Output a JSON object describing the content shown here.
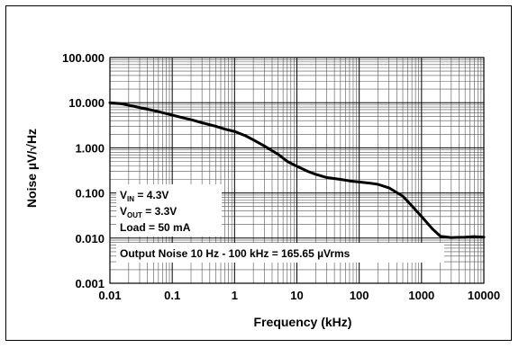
{
  "chart_data": {
    "type": "line",
    "x_scale": "log",
    "y_scale": "log",
    "xlabel": "Frequency (kHz)",
    "ylabel": "Noise µV/√Hz",
    "xlim": [
      0.01,
      10000
    ],
    "ylim": [
      0.001,
      100
    ],
    "grid": true,
    "x_ticks": [
      "0.01",
      "0.1",
      "1",
      "10",
      "100",
      "1000",
      "10000"
    ],
    "y_ticks": [
      "0.001",
      "0.010",
      "0.100",
      "1.000",
      "10.000",
      "100.000"
    ],
    "conditions": {
      "vin": {
        "sym": "V",
        "sub": "IN",
        "rest": " = 4.3V"
      },
      "vout": {
        "sym": "V",
        "sub": "OUT",
        "rest": " = 3.3V"
      },
      "load": "Load = 50 mA"
    },
    "annotation": "Output Noise 10 Hz - 100 kHz = 165.65 µVrms",
    "series": [
      {
        "color": "#000000",
        "x": [
          0.01,
          0.015,
          0.02,
          0.03,
          0.05,
          0.07,
          0.1,
          0.15,
          0.2,
          0.3,
          0.5,
          0.7,
          1,
          1.5,
          2,
          3,
          5,
          7,
          10,
          15,
          20,
          30,
          50,
          70,
          100,
          150,
          200,
          300,
          500,
          700,
          1000,
          1500,
          2000,
          3000,
          5000,
          7000,
          10000
        ],
        "y": [
          10.0,
          9.5,
          8.8,
          7.8,
          6.7,
          6.0,
          5.3,
          4.6,
          4.2,
          3.6,
          3.0,
          2.6,
          2.3,
          1.85,
          1.5,
          1.1,
          0.72,
          0.5,
          0.39,
          0.3,
          0.26,
          0.22,
          0.2,
          0.185,
          0.175,
          0.165,
          0.155,
          0.13,
          0.085,
          0.052,
          0.03,
          0.016,
          0.011,
          0.0103,
          0.0105,
          0.0108,
          0.0105
        ]
      }
    ]
  }
}
